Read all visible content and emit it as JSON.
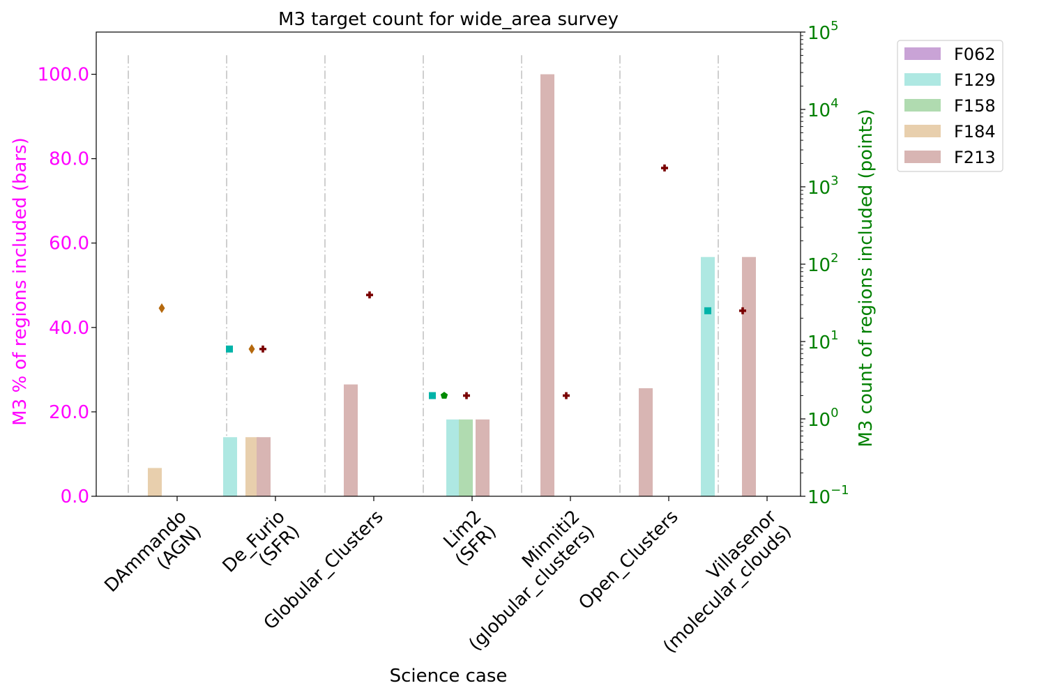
{
  "chart_data": {
    "type": "bar",
    "title": "M3 target count for wide_area survey",
    "xlabel": "Science case",
    "ylabel_left": "M3 % of regions included (bars)",
    "ylabel_right": "M3 count of regions included (points)",
    "ylim_left": [
      0,
      110
    ],
    "ylim_right": [
      0.1,
      100000
    ],
    "right_scale": "log",
    "left_ticks": [
      "0.0",
      "20.0",
      "40.0",
      "60.0",
      "80.0",
      "100.0"
    ],
    "right_ticks": [
      {
        "base": "10",
        "exp": "−1",
        "value": 0.1
      },
      {
        "base": "10",
        "exp": "0",
        "value": 1
      },
      {
        "base": "10",
        "exp": "1",
        "value": 10
      },
      {
        "base": "10",
        "exp": "2",
        "value": 100
      },
      {
        "base": "10",
        "exp": "3",
        "value": 1000
      },
      {
        "base": "10",
        "exp": "4",
        "value": 10000
      },
      {
        "base": "10",
        "exp": "5",
        "value": 100000
      }
    ],
    "categories": [
      "DAmmando\n(AGN)",
      "De_Furio\n(SFR)",
      "Globular_Clusters",
      "Lim2\n(SFR)",
      "Minniti2\n(globular_clusters)",
      "Open_Clusters",
      "Villasenor\n(molecular_clouds)"
    ],
    "legend_position": "outside-top-right",
    "series": [
      {
        "name": "F062",
        "bar_color": "#c9a3d6",
        "point_color": "#9467bd",
        "marker": "circle",
        "percent": [
          null,
          null,
          null,
          null,
          null,
          null,
          null
        ],
        "count": [
          null,
          null,
          null,
          null,
          null,
          null,
          null
        ]
      },
      {
        "name": "F129",
        "bar_color": "#aee8e2",
        "point_color": "#00b3a8",
        "marker": "square",
        "percent": [
          null,
          14,
          null,
          18.2,
          null,
          null,
          56.7
        ],
        "count": [
          null,
          8,
          null,
          2,
          null,
          null,
          25
        ]
      },
      {
        "name": "F158",
        "bar_color": "#b0dbb0",
        "point_color": "#008a00",
        "marker": "pentagon",
        "percent": [
          null,
          null,
          null,
          18.2,
          null,
          null,
          null
        ],
        "count": [
          null,
          null,
          null,
          2,
          null,
          null,
          null
        ]
      },
      {
        "name": "F184",
        "bar_color": "#e8cfad",
        "point_color": "#b5690e",
        "marker": "diamond",
        "percent": [
          6.7,
          14,
          null,
          null,
          null,
          null,
          null
        ],
        "count": [
          27,
          8,
          null,
          null,
          null,
          null,
          null
        ]
      },
      {
        "name": "F213",
        "bar_color": "#d8b5b3",
        "point_color": "#7a0000",
        "marker": "plus",
        "percent": [
          null,
          14,
          26.5,
          18.2,
          100,
          25.6,
          56.7
        ],
        "count": [
          null,
          8,
          40,
          2,
          2,
          1750,
          25
        ]
      }
    ],
    "colors": {
      "left_axis": "#ff00ff",
      "right_axis": "#008000",
      "separator": "#bfbfbf"
    }
  }
}
